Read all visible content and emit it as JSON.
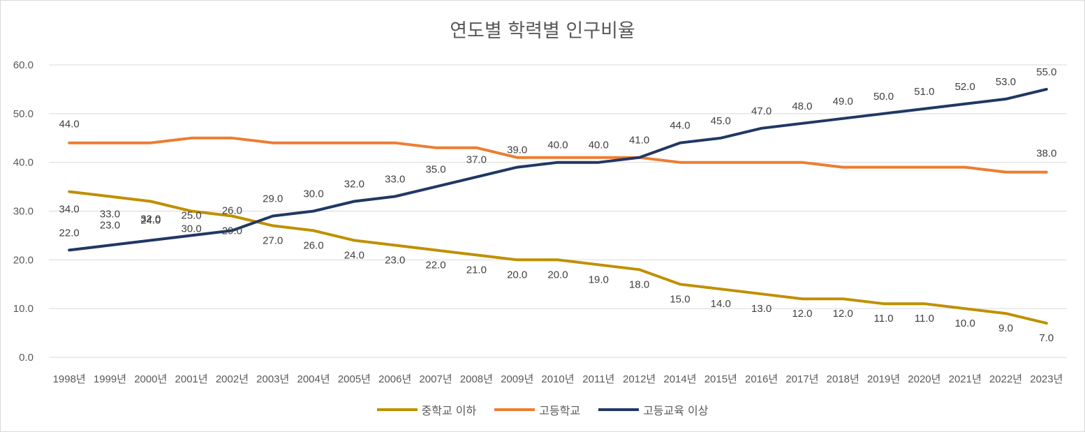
{
  "chart_data": {
    "type": "line",
    "title": "연도별 학력별 인구비율",
    "categories": [
      "1998년",
      "1999년",
      "2000년",
      "2001년",
      "2002년",
      "2003년",
      "2004년",
      "2005년",
      "2006년",
      "2007년",
      "2008년",
      "2009년",
      "2010년",
      "2011년",
      "2012년",
      "2014년",
      "2015년",
      "2016년",
      "2017년",
      "2018년",
      "2019년",
      "2020년",
      "2021년",
      "2022년",
      "2023년"
    ],
    "yticks": [
      "0.0",
      "10.0",
      "20.0",
      "30.0",
      "40.0",
      "50.0",
      "60.0"
    ],
    "ylim": [
      0,
      60
    ],
    "grid": true,
    "legend_position": "bottom",
    "series": [
      {
        "name": "중학교 이하",
        "color": "#bf9000",
        "values": [
          34,
          33,
          32,
          30,
          29,
          27,
          26,
          24,
          23,
          22,
          21,
          20,
          20,
          19,
          18,
          15,
          14,
          13,
          12,
          12,
          11,
          11,
          10,
          9,
          7
        ],
        "labels": [
          "34.0",
          "33.0",
          "32.0",
          "30.0",
          "29.0",
          "27.0",
          "26.0",
          "24.0",
          "23.0",
          "22.0",
          "21.0",
          "20.0",
          "20.0",
          "19.0",
          "18.0",
          "15.0",
          "14.0",
          "13.0",
          "12.0",
          "12.0",
          "11.0",
          "11.0",
          "10.0",
          "9.0",
          "7.0"
        ]
      },
      {
        "name": "고등학교",
        "color": "#ed7d31",
        "values": [
          44,
          44,
          44,
          45,
          45,
          44,
          44,
          44,
          44,
          43,
          43,
          41,
          41,
          41,
          41,
          40,
          40,
          40,
          40,
          39,
          39,
          39,
          39,
          38,
          38
        ],
        "labels": [
          "44.0",
          "",
          "",
          "",
          "",
          "",
          "",
          "",
          "",
          "",
          "",
          "",
          "",
          "",
          "",
          "",
          "",
          "",
          "",
          "",
          "",
          "",
          "",
          "",
          "38.0"
        ]
      },
      {
        "name": "고등교육 이상",
        "color": "#203864",
        "values": [
          22,
          23,
          24,
          25,
          26,
          29,
          30,
          32,
          33,
          35,
          37,
          39,
          40,
          40,
          41,
          44,
          45,
          47,
          48,
          49,
          50,
          51,
          52,
          53,
          55
        ],
        "labels": [
          "22.0",
          "23.0",
          "24.0",
          "25.0",
          "26.0",
          "29.0",
          "30.0",
          "32.0",
          "33.0",
          "35.0",
          "37.0",
          "39.0",
          "40.0",
          "40.0",
          "41.0",
          "44.0",
          "45.0",
          "47.0",
          "48.0",
          "49.0",
          "50.0",
          "51.0",
          "52.0",
          "53.0",
          "55.0"
        ]
      }
    ]
  }
}
